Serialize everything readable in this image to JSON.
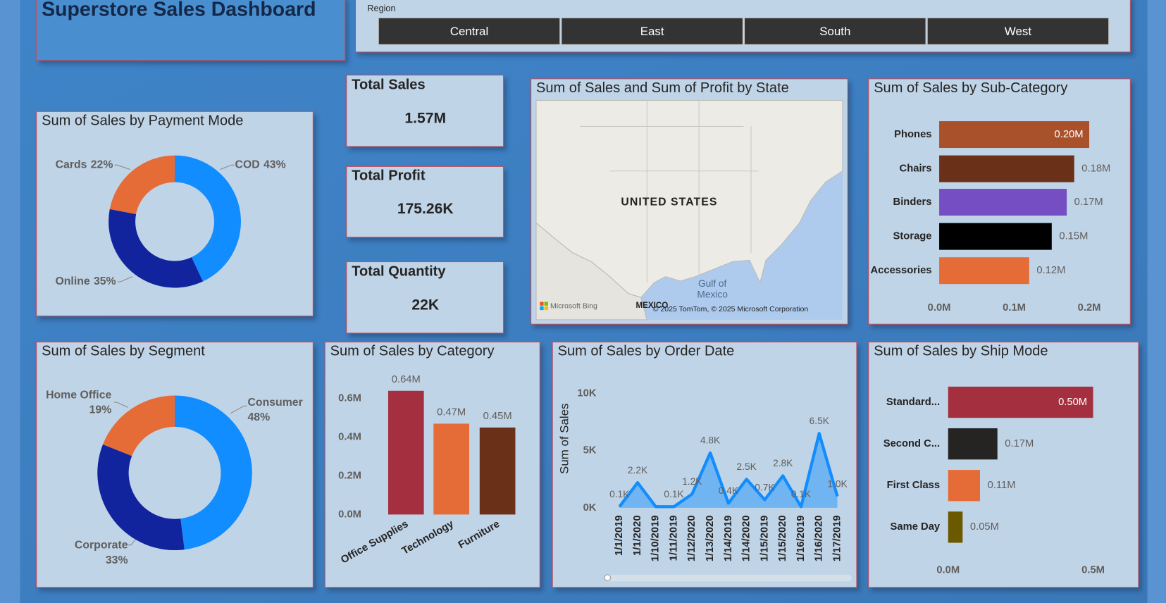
{
  "header": {
    "title": "Superstore Sales Dashboard"
  },
  "slicer": {
    "label": "Region",
    "options": [
      "Central",
      "East",
      "South",
      "West"
    ]
  },
  "kpis": [
    {
      "title": "Total Sales",
      "value": "1.57M"
    },
    {
      "title": "Total Profit",
      "value": "175.26K"
    },
    {
      "title": "Total Quantity",
      "value": "22K"
    }
  ],
  "map": {
    "title": "Sum of Sales and Sum of Profit by State",
    "country": "UNITED STATES",
    "gulf": [
      "Gulf of",
      "Mexico"
    ],
    "mexico": "MEXICO",
    "logo": "Microsoft Bing",
    "attribution": "© 2025 TomTom, © 2025 Microsoft Corporation"
  },
  "chart_data": [
    {
      "type": "donut",
      "title": "Sum of Sales by Payment Mode",
      "categories": [
        "COD",
        "Online",
        "Cards"
      ],
      "values": [
        43,
        35,
        22
      ],
      "value_labels": [
        "43%",
        "35%",
        "22%"
      ],
      "colors": [
        "#118dff",
        "#12239e",
        "#e66c37"
      ]
    },
    {
      "type": "hbar",
      "title": "Sum of Sales by Sub-Category",
      "categories": [
        "Phones",
        "Chairs",
        "Binders",
        "Storage",
        "Accessories"
      ],
      "values": [
        200000,
        180000,
        170000,
        150000,
        120000
      ],
      "value_labels": [
        "0.20M",
        "0.18M",
        "0.17M",
        "0.15M",
        "0.12M"
      ],
      "colors": [
        "#a9512b",
        "#6b3118",
        "#744ec2",
        "#000000",
        "#e66c37"
      ],
      "xlim": [
        0,
        225000
      ],
      "xticks": [
        {
          "value": 0,
          "label": "0.0M"
        },
        {
          "value": 100000,
          "label": "0.1M"
        },
        {
          "value": 200000,
          "label": "0.2M"
        }
      ]
    },
    {
      "type": "donut",
      "title": "Sum of Sales by Segment",
      "categories": [
        "Consumer",
        "Corporate",
        "Home Office"
      ],
      "values": [
        48,
        33,
        19
      ],
      "value_labels": [
        "48%",
        "33%",
        "19%"
      ],
      "colors": [
        "#118dff",
        "#12239e",
        "#e66c37"
      ]
    },
    {
      "type": "bar",
      "title": "Sum of Sales by Category",
      "categories": [
        "Office Supplies",
        "Technology",
        "Furniture"
      ],
      "values": [
        640000,
        470000,
        450000
      ],
      "value_labels": [
        "0.64M",
        "0.47M",
        "0.45M"
      ],
      "colors": [
        "#a4303f",
        "#e66c37",
        "#6b3118"
      ],
      "ylim": [
        0,
        700000
      ],
      "yticks": [
        {
          "value": 0,
          "label": "0.0M"
        },
        {
          "value": 200000,
          "label": "0.2M"
        },
        {
          "value": 400000,
          "label": "0.4M"
        },
        {
          "value": 600000,
          "label": "0.6M"
        }
      ]
    },
    {
      "type": "line",
      "title": "Sum of Sales by Order Date",
      "y_label": "Sum of Sales",
      "color": "#118dff",
      "categories": [
        "1/1/2019",
        "1/1/2020",
        "1/10/2019",
        "1/11/2019",
        "1/12/2020",
        "1/13/2020",
        "1/14/2019",
        "1/14/2020",
        "1/15/2019",
        "1/15/2020",
        "1/16/2019",
        "1/16/2020",
        "1/17/2019"
      ],
      "values": [
        100,
        2200,
        100,
        100,
        1200,
        4800,
        400,
        2500,
        700,
        2800,
        100,
        6500,
        1000
      ],
      "value_labels": [
        "0.1K",
        "2.2K",
        null,
        "0.1K",
        "1.2K",
        "4.8K",
        "0.4K",
        "2.5K",
        "0.7K",
        "2.8K",
        "0.1K",
        "6.5K",
        "1.0K"
      ],
      "ylim": [
        0,
        11000
      ],
      "yticks": [
        {
          "value": 0,
          "label": "0K"
        },
        {
          "value": 5000,
          "label": "5K"
        },
        {
          "value": 10000,
          "label": "10K"
        }
      ]
    },
    {
      "type": "hbar",
      "title": "Sum of Sales by Ship Mode",
      "categories": [
        "Standard...",
        "Second C...",
        "First Class",
        "Same Day"
      ],
      "values": [
        500000,
        170000,
        110000,
        50000
      ],
      "value_labels": [
        "0.50M",
        "0.17M",
        "0.11M",
        "0.05M"
      ],
      "colors": [
        "#a4303f",
        "#252423",
        "#e66c37",
        "#6b5900"
      ],
      "xlim": [
        0,
        550000
      ],
      "xticks": [
        {
          "value": 0,
          "label": "0.0M"
        },
        {
          "value": 500000,
          "label": "0.5M"
        }
      ]
    }
  ]
}
